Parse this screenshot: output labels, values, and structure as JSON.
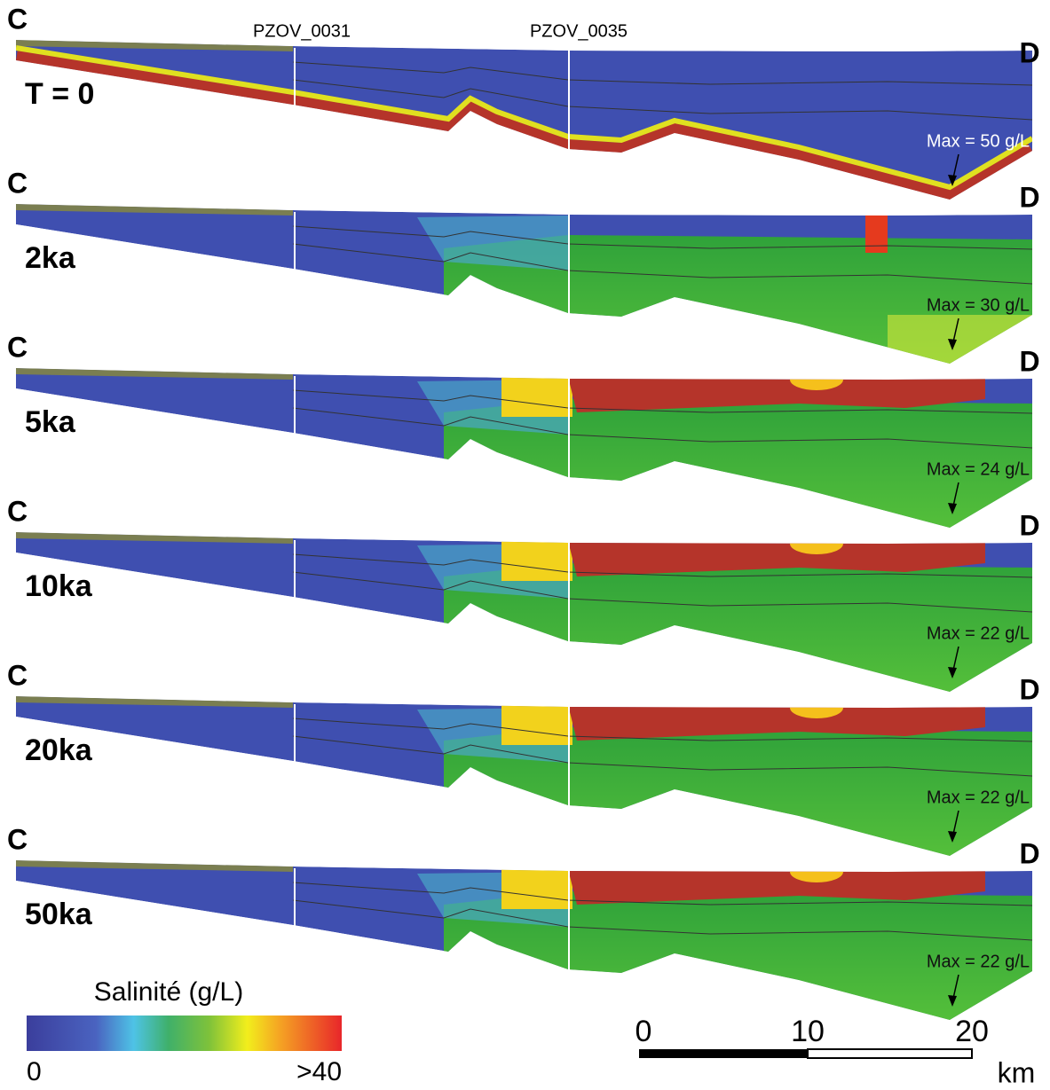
{
  "wells": [
    "PZOV_0031",
    "PZOV_0035"
  ],
  "panels": [
    {
      "left": "C",
      "right": "D",
      "time": "T = 0",
      "max": "Max = 50 g/L"
    },
    {
      "left": "C",
      "right": "D",
      "time": "2ka",
      "max": "Max = 30 g/L"
    },
    {
      "left": "C",
      "right": "D",
      "time": "5ka",
      "max": "Max = 24 g/L"
    },
    {
      "left": "C",
      "right": "D",
      "time": "10ka",
      "max": "Max = 22 g/L"
    },
    {
      "left": "C",
      "right": "D",
      "time": "20ka",
      "max": "Max = 22 g/L"
    },
    {
      "left": "C",
      "right": "D",
      "time": "50ka",
      "max": "Max = 22 g/L"
    }
  ],
  "legend": {
    "title": "Salinité (g/L)",
    "min": "0",
    "max": ">40"
  },
  "scale": {
    "labels": [
      "0",
      "10",
      "20"
    ],
    "unit": "km"
  }
}
